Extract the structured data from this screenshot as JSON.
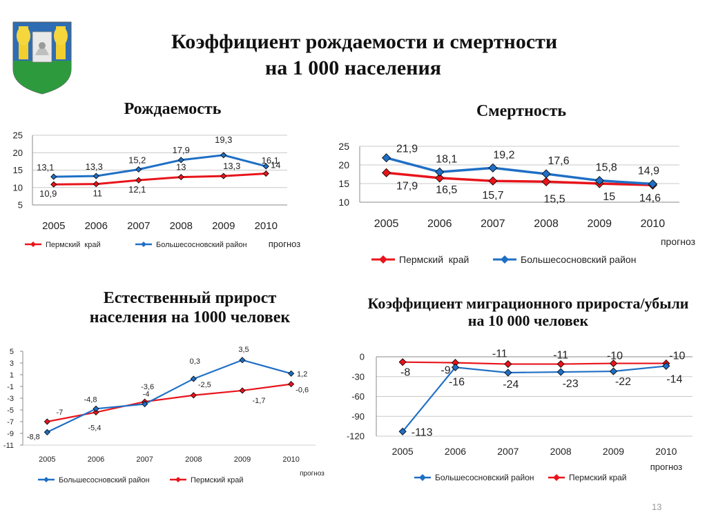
{
  "header": {
    "title_line1": "Коэффициент рождаемости и смертности",
    "title_line2": "на 1 000 населения"
  },
  "page_number": "13",
  "colors": {
    "red": "#E8141B",
    "blue": "#1F6FC5",
    "grid": "#C8C8C8",
    "axis": "#888888"
  },
  "chart_data": [
    {
      "type": "line",
      "title": "Рождаемость",
      "categories": [
        "2005",
        "2006",
        "2007",
        "2008",
        "2009",
        "2010"
      ],
      "forecast_label": "прогноз",
      "ylim": [
        5,
        25
      ],
      "yticks": [
        5,
        10,
        15,
        20,
        25
      ],
      "grid": true,
      "legend": "bottom",
      "series": [
        {
          "name": "Пермский  край",
          "values": [
            10.9,
            11,
            12.1,
            13,
            13.3,
            14
          ],
          "labels": [
            "10,9",
            "11",
            "12,1",
            "13",
            "13,3",
            "14"
          ],
          "color": "#E8141B"
        },
        {
          "name": "Большесосновский район",
          "values": [
            13.1,
            13.3,
            15.2,
            17.9,
            19.3,
            16.1
          ],
          "labels": [
            "13,1",
            "13,3",
            "15,2",
            "17,9",
            "19,3",
            "16,1"
          ],
          "color": "#1F6FC5"
        }
      ]
    },
    {
      "type": "line",
      "title": "Смертность",
      "categories": [
        "2005",
        "2006",
        "2007",
        "2008",
        "2009",
        "2010"
      ],
      "forecast_label": "прогноз",
      "ylim": [
        10,
        25
      ],
      "yticks": [
        10,
        15,
        20,
        25
      ],
      "grid": true,
      "legend": "bottom",
      "series": [
        {
          "name": "Пермский  край",
          "values": [
            17.9,
            16.5,
            15.7,
            15.5,
            15,
            14.6
          ],
          "labels": [
            "17,9",
            "16,5",
            "15,7",
            "15,5",
            "15",
            "14,6"
          ],
          "color": "#E8141B"
        },
        {
          "name": "Большесосновский район",
          "values": [
            21.9,
            18.1,
            19.2,
            17.6,
            15.8,
            14.9
          ],
          "labels": [
            "21,9",
            "18,1",
            "19,2",
            "17,6",
            "15,8",
            "14,9"
          ],
          "color": "#1F6FC5"
        }
      ]
    },
    {
      "type": "line",
      "title": "Естественный прирост населения на 1000 человек",
      "categories": [
        "2005",
        "2006",
        "2007",
        "2008",
        "2009",
        "2010"
      ],
      "forecast_label": "прогноз",
      "ylim": [
        -11,
        5
      ],
      "yticks": [
        5,
        3,
        1,
        -1,
        -3,
        -5,
        -7,
        -9,
        -11
      ],
      "grid": false,
      "legend": "bottom",
      "series": [
        {
          "name": "Большесосновский район",
          "values": [
            -8.8,
            -4.8,
            -4,
            0.3,
            3.5,
            1.2
          ],
          "labels": [
            "-8,8",
            "-4,8",
            "-4",
            "0,3",
            "3,5",
            "1,2"
          ],
          "color": "#1F6FC5"
        },
        {
          "name": "Пермский край",
          "values": [
            -7,
            -5.4,
            -3.6,
            -2.5,
            -1.7,
            -0.6
          ],
          "labels": [
            "-7",
            "-5,4",
            "-3,6",
            "-2,5",
            "-1,7",
            "-0,6"
          ],
          "color": "#E8141B"
        }
      ]
    },
    {
      "type": "line",
      "title": "Коэффициент миграционного прироста/убыли на 10 000 человек",
      "categories": [
        "2005",
        "2006",
        "2007",
        "2008",
        "2009",
        "2010"
      ],
      "forecast_label": "прогноз",
      "ylim": [
        -120,
        0
      ],
      "yticks": [
        0,
        -30,
        -60,
        -90,
        -120
      ],
      "grid": true,
      "legend": "bottom",
      "series": [
        {
          "name": "Большесосновский район",
          "values": [
            -113,
            -16,
            -24,
            -23,
            -22,
            -14
          ],
          "labels": [
            "-113",
            "-16",
            "-24",
            "-23",
            "-22",
            "-14"
          ],
          "color": "#1F6FC5"
        },
        {
          "name": "Пермский край",
          "values": [
            -8,
            -9,
            -11,
            -11,
            -10,
            -10
          ],
          "labels": [
            "-8",
            "-9",
            "-11",
            "-11",
            "-10",
            "-10"
          ],
          "color": "#E8141B"
        }
      ]
    }
  ]
}
